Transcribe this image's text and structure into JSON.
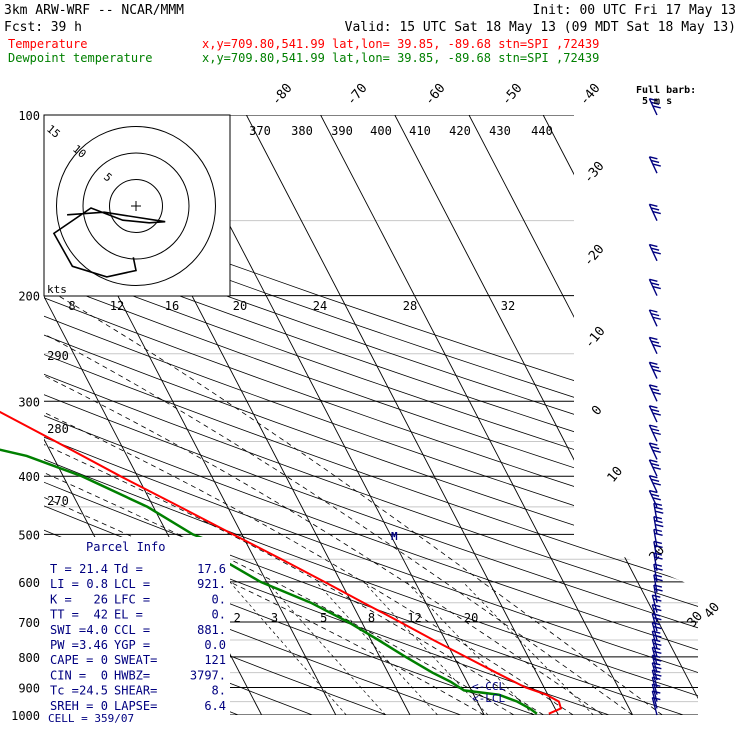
{
  "header": {
    "line1_left": "3km ARW-WRF -- NCAR/MMM",
    "line1_right": "Init: 00 UTC Fri 17 May 13",
    "fcst_label": "Fcst:",
    "fcst_value": "39 h",
    "valid": "Valid: 15 UTC Sat 18 May 13 (09 MDT Sat 18 May 13)",
    "temp_label": "Temperature",
    "dew_label": "Dewpoint temperature",
    "temp_loc": "x,y=709.80,541.99   lat,lon= 39.85, -89.68  stn=SPI ,72439",
    "dew_loc": "x,y=709.80,541.99   lat,lon= 39.85, -89.68  stn=SPI ,72439"
  },
  "colors": {
    "temperature": "#ff0000",
    "dewpoint": "#008000",
    "barbs": "#000080",
    "parcel_text": "#000080"
  },
  "chart_data": {
    "type": "line",
    "title": "",
    "y_scale": "log-pressure",
    "ylim": [
      1000,
      100
    ],
    "pressure_ticks": [
      "100",
      "200",
      "300",
      "400",
      "500",
      "600",
      "700",
      "800",
      "900",
      "1000"
    ],
    "isotherm_labels": [
      "-80",
      "-70",
      "-60",
      "-50",
      "-40",
      "-30",
      "-20",
      "-10",
      "0",
      "10",
      "20",
      "30",
      "40"
    ],
    "theta_labels": [
      "370",
      "380",
      "390",
      "400",
      "410",
      "420",
      "430",
      "440",
      "290",
      "280",
      "270"
    ],
    "mixing_ratio_labels": [
      "2",
      "3",
      "5",
      "8",
      "12",
      "20"
    ],
    "hodograph_ring_labels": [
      "15",
      "10",
      "5"
    ],
    "hodograph_speed_labels": [
      "8",
      "12",
      "16",
      "20",
      "24",
      "28",
      "32"
    ],
    "hodograph_unit": "kts",
    "barb_legend": [
      "Full barb:",
      "5 m s"
    ],
    "lcl_markers": [
      "<-CCL",
      "<-LCL"
    ],
    "temperature_series": {
      "name": "Temperature",
      "points": [
        [
          995,
          18.8
        ],
        [
          975,
          20.8
        ],
        [
          950,
          21.0
        ],
        [
          925,
          19.8
        ],
        [
          900,
          17.5
        ],
        [
          850,
          14.6
        ],
        [
          800,
          11.6
        ],
        [
          750,
          8.4
        ],
        [
          700,
          5.2
        ],
        [
          650,
          1.6
        ],
        [
          600,
          -2.2
        ],
        [
          550,
          -6.4
        ],
        [
          500,
          -11.2
        ],
        [
          450,
          -16.4
        ],
        [
          400,
          -22.3
        ],
        [
          350,
          -28.6
        ],
        [
          300,
          -36.0
        ],
        [
          250,
          -44.2
        ],
        [
          200,
          -53.7
        ],
        [
          180,
          -56.8
        ],
        [
          160,
          -58.0
        ],
        [
          150,
          -58.4
        ],
        [
          140,
          -58.2
        ],
        [
          130,
          -57.4
        ],
        [
          120,
          -55.8
        ],
        [
          110,
          -52.9
        ],
        [
          100,
          -49.9
        ]
      ]
    },
    "dewpoint_series": {
      "name": "Dewpoint temperature",
      "points": [
        [
          995,
          17.2
        ],
        [
          975,
          16.6
        ],
        [
          950,
          15.4
        ],
        [
          925,
          13.4
        ],
        [
          910,
          9.0
        ],
        [
          880,
          7.8
        ],
        [
          850,
          6.0
        ],
        [
          800,
          3.5
        ],
        [
          750,
          1.0
        ],
        [
          700,
          -1.8
        ],
        [
          650,
          -5.5
        ],
        [
          600,
          -10.8
        ],
        [
          550,
          -14.5
        ],
        [
          520,
          -13.8
        ],
        [
          500,
          -16.6
        ],
        [
          450,
          -20.8
        ],
        [
          400,
          -27.5
        ],
        [
          370,
          -33.5
        ],
        [
          350,
          -41.0
        ],
        [
          340,
          -48.0
        ],
        [
          320,
          -49.8
        ],
        [
          300,
          -50.5
        ],
        [
          280,
          -52.5
        ],
        [
          260,
          -55.5
        ],
        [
          240,
          -58.5
        ],
        [
          220,
          -63.8
        ],
        [
          200,
          -67.0
        ],
        [
          190,
          -67.6
        ],
        [
          170,
          -67.2
        ],
        [
          150,
          -69.0
        ],
        [
          140,
          -70.8
        ],
        [
          120,
          -76.5
        ],
        [
          110,
          -78.5
        ],
        [
          100,
          -80.0
        ]
      ]
    },
    "hodograph_points": [
      [
        -0.5,
        2.5
      ],
      [
        0.0,
        5.0
      ],
      [
        -5.5,
        6.2
      ],
      [
        -12.0,
        4.2
      ],
      [
        -15.5,
        -2.0
      ],
      [
        -8.5,
        -6.8
      ],
      [
        -2.5,
        -4.5
      ],
      [
        2.5,
        -4.0
      ],
      [
        5.5,
        -4.2
      ],
      [
        -6.0,
        -6.0
      ],
      [
        -13.0,
        -5.5
      ]
    ],
    "parcel_info": {
      "title": "Parcel Info",
      "rows": [
        [
          "T  =",
          "21.4",
          "Td =",
          "17.6"
        ],
        [
          "LI =",
          "0.8",
          "LCL =",
          "921."
        ],
        [
          "K  =",
          "26",
          "LFC =",
          "0."
        ],
        [
          "TT =",
          "42",
          "EL  =",
          "0."
        ],
        [
          "SWI =",
          "4.0",
          "CCL =",
          "881."
        ],
        [
          "PW =",
          "3.46",
          "YGP =",
          "0.0"
        ],
        [
          "CAPE =",
          "0",
          "SWEAT=",
          "121"
        ],
        [
          "CIN  =",
          "0",
          "HWBZ=",
          "3797."
        ],
        [
          "Tc =",
          "24.5",
          "SHEAR=",
          "8."
        ],
        [
          "SREH =",
          "0",
          "LAPSE=",
          "6.4"
        ]
      ],
      "cell": "CELL = 359/07"
    }
  }
}
